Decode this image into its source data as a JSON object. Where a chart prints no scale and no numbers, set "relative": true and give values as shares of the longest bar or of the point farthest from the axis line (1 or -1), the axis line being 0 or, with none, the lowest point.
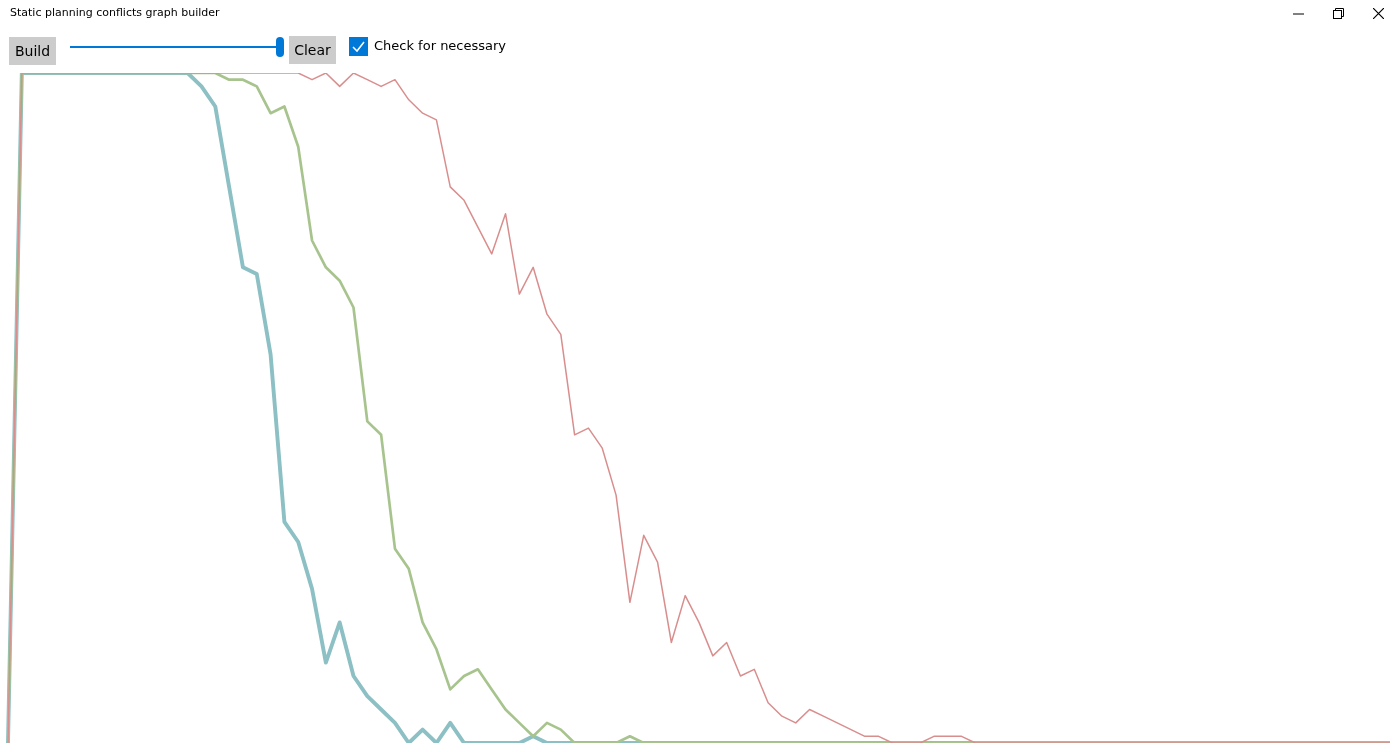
{
  "chart_data": {
    "type": "line",
    "title": "Static planning conflicts graph builder",
    "annotations": [
      "Build",
      "Clear",
      "Check for necessary"
    ],
    "relative": true,
    "grid": false,
    "legend": false,
    "marker": "none",
    "line_style": "solid",
    "categories": [
      null,
      null,
      null,
      null,
      null,
      null,
      null,
      null,
      null,
      null,
      null,
      null,
      null,
      null,
      null,
      null,
      null,
      null,
      null,
      null,
      null,
      null,
      null,
      null,
      null,
      null,
      null,
      null,
      null,
      null,
      null,
      null,
      null,
      null,
      null,
      null,
      null,
      null,
      null,
      null,
      null,
      null,
      null,
      null,
      null,
      null,
      null,
      null,
      null,
      null,
      null,
      null,
      null,
      null,
      null,
      null,
      null,
      null,
      null,
      null,
      null,
      null,
      null,
      null,
      null,
      null,
      null,
      null,
      null,
      null,
      null,
      null,
      null,
      null,
      null,
      null,
      null,
      null,
      null,
      null,
      null,
      null,
      null,
      null,
      null,
      null,
      null,
      null,
      null,
      null,
      null,
      null,
      null,
      null,
      null,
      null,
      null,
      null,
      null,
      null,
      null
    ],
    "series": [
      {
        "color": "#d98e8e",
        "values": [
          0,
          1,
          1,
          1,
          1,
          1,
          1,
          1,
          1,
          1,
          1,
          1,
          1,
          1,
          1,
          1,
          1,
          1,
          1,
          1,
          1,
          1,
          0.99,
          1,
          0.98,
          1,
          0.99,
          0.98,
          0.99,
          0.96,
          0.94,
          0.93,
          0.83,
          0.81,
          0.77,
          0.73,
          0.79,
          0.67,
          0.71,
          0.64,
          0.61,
          0.46,
          0.47,
          0.44,
          0.37,
          0.21,
          0.31,
          0.27,
          0.15,
          0.22,
          0.18,
          0.13,
          0.15,
          0.1,
          0.11,
          0.06,
          0.04,
          0.03,
          0.05,
          0.04,
          0.03,
          0.02,
          0.01,
          0.01,
          0,
          0,
          0,
          0.01,
          0.01,
          0.01,
          0,
          0,
          0,
          0,
          0,
          0,
          0,
          0,
          0,
          0,
          0,
          0,
          0,
          0,
          0,
          0,
          0,
          0,
          0,
          0,
          0,
          0,
          0,
          0,
          0,
          0,
          0,
          0,
          0,
          0,
          0
        ]
      },
      {
        "color": "#a8c48e",
        "values": [
          0,
          1,
          1,
          1,
          1,
          1,
          1,
          1,
          1,
          1,
          1,
          1,
          1,
          1,
          1,
          1,
          0.99,
          0.99,
          0.98,
          0.94,
          0.95,
          0.89,
          0.75,
          0.71,
          0.69,
          0.65,
          0.48,
          0.46,
          0.29,
          0.26,
          0.18,
          0.14,
          0.08,
          0.1,
          0.11,
          0.08,
          0.05,
          0.03,
          0.01,
          0.03,
          0.02,
          0,
          0,
          0,
          0,
          0.01,
          0,
          0,
          0,
          0,
          0,
          0,
          0,
          0,
          0,
          0,
          0,
          0,
          0,
          0,
          0,
          0,
          0,
          0,
          0,
          0,
          0,
          0,
          0,
          0,
          0,
          0,
          0,
          0,
          0,
          0,
          0,
          0,
          0,
          0,
          0,
          0,
          0,
          0,
          0,
          0,
          0,
          0,
          0,
          0,
          0,
          0,
          0,
          0,
          0,
          0,
          0,
          0,
          0,
          0,
          0
        ]
      },
      {
        "color": "#8cc0c4",
        "values": [
          0,
          1,
          1,
          1,
          1,
          1,
          1,
          1,
          1,
          1,
          1,
          1,
          1,
          1,
          0.98,
          0.95,
          0.83,
          0.71,
          0.7,
          0.58,
          0.33,
          0.3,
          0.23,
          0.12,
          0.18,
          0.1,
          0.07,
          0.05,
          0.03,
          0,
          0.02,
          0,
          0.03,
          0,
          0,
          0,
          0,
          0,
          0.01,
          0,
          0,
          0,
          0,
          0,
          0,
          0,
          0,
          0,
          0,
          0,
          0,
          0,
          0,
          0,
          0,
          0,
          0,
          0,
          0,
          0,
          0,
          0,
          0,
          0,
          0,
          0,
          0,
          0,
          0,
          0,
          0,
          0,
          0,
          0,
          0,
          0,
          0,
          0,
          0,
          0,
          0,
          0,
          0,
          0,
          0,
          0,
          0,
          0,
          0,
          0,
          0,
          0,
          0,
          0,
          0,
          0,
          0,
          0,
          0,
          0,
          0
        ]
      }
    ]
  }
}
